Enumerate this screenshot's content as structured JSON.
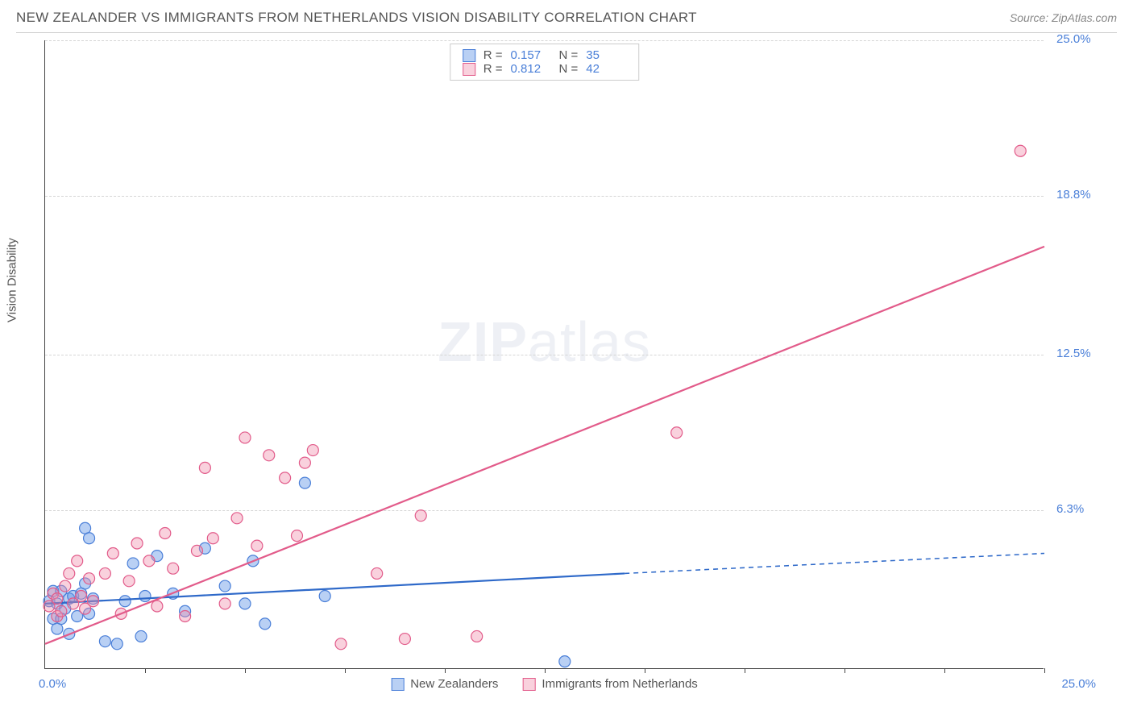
{
  "header": {
    "title": "NEW ZEALANDER VS IMMIGRANTS FROM NETHERLANDS VISION DISABILITY CORRELATION CHART",
    "source_label": "Source:",
    "source_name": "ZipAtlas.com"
  },
  "chart": {
    "type": "scatter",
    "y_axis_title": "Vision Disability",
    "watermark_a": "ZIP",
    "watermark_b": "atlas",
    "background_color": "#ffffff",
    "grid_color": "#d5d5d5",
    "axis_color": "#444444",
    "tick_label_color": "#4a7fd8",
    "xlim": [
      0,
      25
    ],
    "ylim": [
      0,
      25
    ],
    "x_origin_label": "0.0%",
    "x_max_label": "25.0%",
    "y_ticks": [
      {
        "value": 6.3,
        "label": "6.3%"
      },
      {
        "value": 12.5,
        "label": "12.5%"
      },
      {
        "value": 18.8,
        "label": "18.8%"
      },
      {
        "value": 25.0,
        "label": "25.0%"
      }
    ],
    "x_tick_positions": [
      2.5,
      5,
      7.5,
      10,
      12.5,
      15,
      17.5,
      20,
      22.5,
      25
    ],
    "marker_radius": 7,
    "marker_stroke_width": 1.2,
    "line_width": 2.2,
    "series": [
      {
        "key": "nz",
        "label": "New Zealanders",
        "color_fill": "rgba(100,150,230,0.45)",
        "color_stroke": "#4a7fd8",
        "trend_color": "#2e69c9",
        "R": "0.157",
        "N": "35",
        "trend_solid": {
          "x1": 0,
          "y1": 2.6,
          "x2": 14.5,
          "y2": 3.8
        },
        "trend_dashed": {
          "x1": 14.5,
          "y1": 3.8,
          "x2": 25,
          "y2": 4.6
        },
        "points": [
          [
            0.1,
            2.7
          ],
          [
            0.2,
            2.0
          ],
          [
            0.2,
            3.1
          ],
          [
            0.3,
            2.6
          ],
          [
            0.3,
            1.6
          ],
          [
            0.4,
            3.1
          ],
          [
            0.4,
            2.0
          ],
          [
            0.5,
            2.4
          ],
          [
            0.6,
            2.8
          ],
          [
            0.6,
            1.4
          ],
          [
            0.7,
            2.9
          ],
          [
            0.8,
            2.1
          ],
          [
            0.9,
            3.0
          ],
          [
            1.0,
            5.6
          ],
          [
            1.0,
            3.4
          ],
          [
            1.1,
            2.2
          ],
          [
            1.1,
            5.2
          ],
          [
            1.2,
            2.8
          ],
          [
            1.5,
            1.1
          ],
          [
            1.8,
            1.0
          ],
          [
            2.0,
            2.7
          ],
          [
            2.2,
            4.2
          ],
          [
            2.4,
            1.3
          ],
          [
            2.5,
            2.9
          ],
          [
            2.8,
            4.5
          ],
          [
            3.2,
            3.0
          ],
          [
            3.5,
            2.3
          ],
          [
            4.0,
            4.8
          ],
          [
            4.5,
            3.3
          ],
          [
            5.0,
            2.6
          ],
          [
            5.2,
            4.3
          ],
          [
            5.5,
            1.8
          ],
          [
            6.5,
            7.4
          ],
          [
            13.0,
            0.3
          ],
          [
            7.0,
            2.9
          ]
        ]
      },
      {
        "key": "nl",
        "label": "Immigrants from Netherlands",
        "color_fill": "rgba(240,140,170,0.40)",
        "color_stroke": "#e25b8a",
        "trend_color": "#e25b8a",
        "R": "0.812",
        "N": "42",
        "trend_solid": {
          "x1": 0,
          "y1": 1.0,
          "x2": 25,
          "y2": 16.8
        },
        "trend_dashed": null,
        "points": [
          [
            0.1,
            2.5
          ],
          [
            0.2,
            3.0
          ],
          [
            0.3,
            2.1
          ],
          [
            0.3,
            2.8
          ],
          [
            0.4,
            2.3
          ],
          [
            0.5,
            3.3
          ],
          [
            0.6,
            3.8
          ],
          [
            0.7,
            2.6
          ],
          [
            0.8,
            4.3
          ],
          [
            0.9,
            2.9
          ],
          [
            1.0,
            2.4
          ],
          [
            1.1,
            3.6
          ],
          [
            1.2,
            2.7
          ],
          [
            1.5,
            3.8
          ],
          [
            1.7,
            4.6
          ],
          [
            1.9,
            2.2
          ],
          [
            2.1,
            3.5
          ],
          [
            2.3,
            5.0
          ],
          [
            2.6,
            4.3
          ],
          [
            2.8,
            2.5
          ],
          [
            3.0,
            5.4
          ],
          [
            3.2,
            4.0
          ],
          [
            3.5,
            2.1
          ],
          [
            3.8,
            4.7
          ],
          [
            4.0,
            8.0
          ],
          [
            4.2,
            5.2
          ],
          [
            4.5,
            2.6
          ],
          [
            4.8,
            6.0
          ],
          [
            5.0,
            9.2
          ],
          [
            5.3,
            4.9
          ],
          [
            5.6,
            8.5
          ],
          [
            6.0,
            7.6
          ],
          [
            6.3,
            5.3
          ],
          [
            6.5,
            8.2
          ],
          [
            6.7,
            8.7
          ],
          [
            7.4,
            1.0
          ],
          [
            8.3,
            3.8
          ],
          [
            9.0,
            1.2
          ],
          [
            9.4,
            6.1
          ],
          [
            10.8,
            1.3
          ],
          [
            15.8,
            9.4
          ],
          [
            24.4,
            20.6
          ]
        ]
      }
    ],
    "legend_R_label": "R =",
    "legend_N_label": "N ="
  }
}
